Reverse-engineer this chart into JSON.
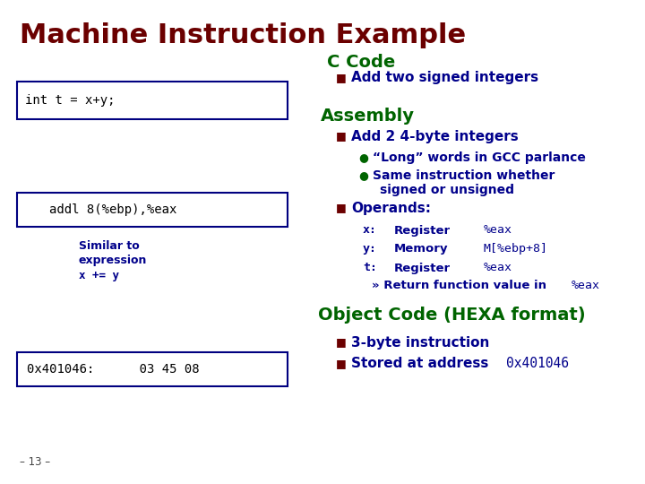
{
  "title": "Machine Instruction Example",
  "title_color": "#6B0000",
  "title_fontsize": 22,
  "bg_color": "#FFFFFF",
  "section_ccode": "C Code",
  "section_assembly": "Assembly",
  "section_object": "Object Code (HEXA format)",
  "section_color": "#006400",
  "box1_text": "int t = x+y;",
  "box2_text": "addl 8(%ebp),%eax",
  "box3_text": "0x401046:      03 45 08",
  "box_bg": "#FFFFFF",
  "box_border": "#000080",
  "box_font_color": "#000000",
  "bullet_color": "#6B0000",
  "green": "#006400",
  "dark_blue": "#00008B",
  "bullet_sq": "■",
  "bullet_dot": "●",
  "items": {
    "ccode_bullet": "Add two signed integers",
    "asm_title": "Add 2 4-byte integers",
    "asm_sub1": "“Long” words in GCC parlance",
    "asm_sub2a": "Same instruction whether",
    "asm_sub2b": "signed or unsigned",
    "operands_title": "Operands:",
    "op_x": "x:",
    "op_x_type": "Register",
    "op_x_val": "%eax",
    "op_y": "y:",
    "op_y_type": "Memory",
    "op_y_val": "M[%ebp+8]",
    "op_t": "t:",
    "op_t_type": "Register",
    "op_t_val": "%eax",
    "ret_prefix": "» Return function value in ",
    "ret_code": "%eax",
    "similar_text_1": "Similar to",
    "similar_text_2": "expression",
    "similar_text_3": "x += y",
    "obj_bullet1": "3-byte instruction",
    "obj_bullet2a": "Stored at address ",
    "obj_bullet2b": "0x401046",
    "slide_num": "– 13 –"
  }
}
